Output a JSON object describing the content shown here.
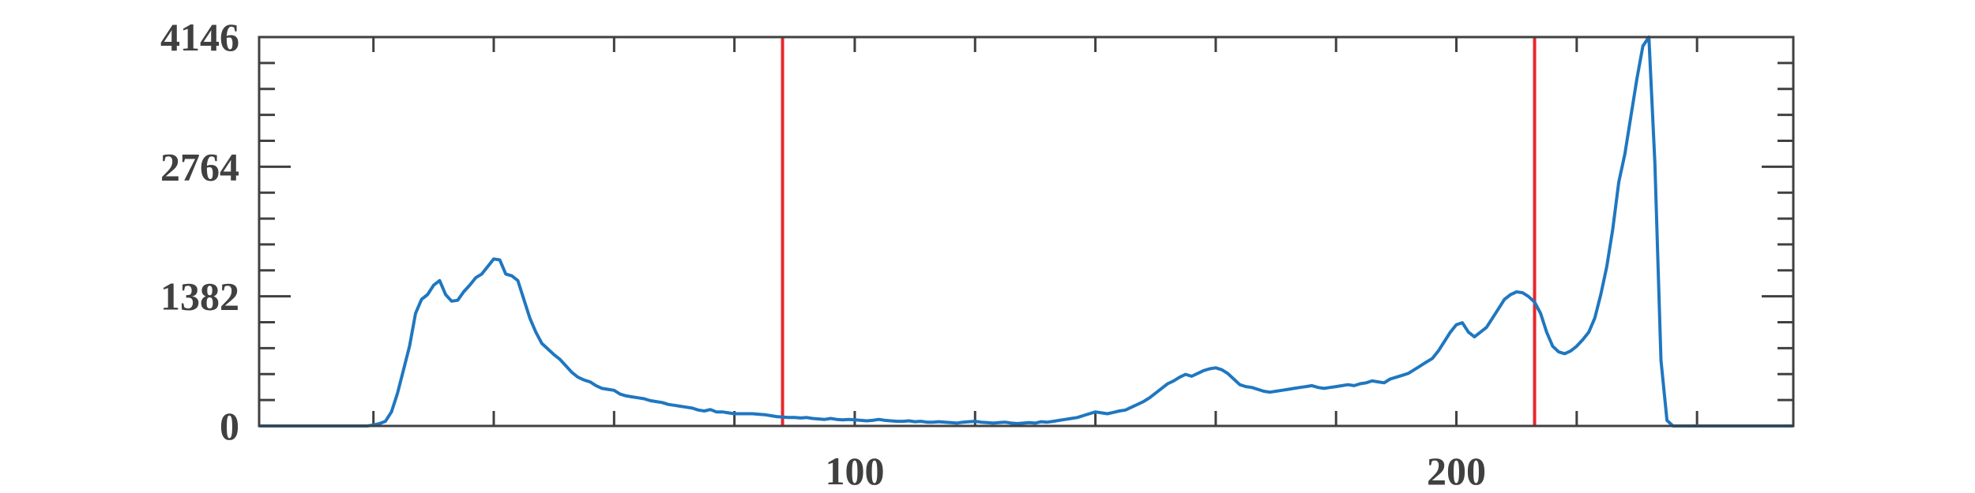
{
  "chart_data": {
    "type": "line",
    "title": "",
    "xlabel": "",
    "ylabel": "",
    "xlim": [
      1,
      256
    ],
    "ylim": [
      0,
      4146
    ],
    "grid": false,
    "legend": "none",
    "x_tick_values": [
      20,
      40,
      60,
      80,
      100,
      120,
      140,
      160,
      180,
      200,
      220,
      240
    ],
    "x_tick_labels": [
      {
        "value": 100,
        "label": "100"
      },
      {
        "value": 200,
        "label": "200"
      }
    ],
    "y_major_ticks": [
      {
        "value": 0,
        "label": "0"
      },
      {
        "value": 1382,
        "label": "1382"
      },
      {
        "value": 2764,
        "label": "2764"
      },
      {
        "value": 4146,
        "label": "4146"
      }
    ],
    "y_minor_tick_values": [
      276.4,
      552.8,
      829.2,
      1105.6,
      1658.4,
      1934.8,
      2211.2,
      2487.6,
      3040.4,
      3316.8,
      3593.2,
      3869.6
    ],
    "vertical_lines": [
      {
        "x": 88,
        "color": "#e8282b"
      },
      {
        "x": 213,
        "color": "#e8282b"
      }
    ],
    "series": [
      {
        "color": "#1f77c0",
        "points": [
          [
            1,
            0
          ],
          [
            19,
            0
          ],
          [
            20,
            10
          ],
          [
            21,
            25
          ],
          [
            22,
            50
          ],
          [
            23,
            150
          ],
          [
            24,
            350
          ],
          [
            25,
            600
          ],
          [
            26,
            850
          ],
          [
            27,
            1200
          ],
          [
            28,
            1350
          ],
          [
            29,
            1400
          ],
          [
            30,
            1500
          ],
          [
            31,
            1550
          ],
          [
            32,
            1400
          ],
          [
            33,
            1330
          ],
          [
            34,
            1340
          ],
          [
            35,
            1430
          ],
          [
            36,
            1500
          ],
          [
            37,
            1580
          ],
          [
            38,
            1620
          ],
          [
            39,
            1700
          ],
          [
            40,
            1780
          ],
          [
            41,
            1770
          ],
          [
            42,
            1620
          ],
          [
            43,
            1600
          ],
          [
            44,
            1550
          ],
          [
            45,
            1350
          ],
          [
            46,
            1150
          ],
          [
            47,
            1000
          ],
          [
            48,
            880
          ],
          [
            49,
            820
          ],
          [
            50,
            760
          ],
          [
            51,
            710
          ],
          [
            52,
            640
          ],
          [
            53,
            570
          ],
          [
            54,
            520
          ],
          [
            55,
            490
          ],
          [
            56,
            470
          ],
          [
            57,
            430
          ],
          [
            58,
            400
          ],
          [
            59,
            390
          ],
          [
            60,
            380
          ],
          [
            61,
            340
          ],
          [
            62,
            320
          ],
          [
            63,
            310
          ],
          [
            64,
            300
          ],
          [
            65,
            290
          ],
          [
            66,
            270
          ],
          [
            67,
            260
          ],
          [
            68,
            250
          ],
          [
            69,
            230
          ],
          [
            70,
            220
          ],
          [
            71,
            210
          ],
          [
            72,
            200
          ],
          [
            73,
            190
          ],
          [
            74,
            170
          ],
          [
            75,
            160
          ],
          [
            76,
            175
          ],
          [
            77,
            150
          ],
          [
            78,
            150
          ],
          [
            79,
            140
          ],
          [
            80,
            130
          ],
          [
            81,
            130
          ],
          [
            82,
            130
          ],
          [
            83,
            130
          ],
          [
            84,
            125
          ],
          [
            85,
            120
          ],
          [
            86,
            110
          ],
          [
            87,
            100
          ],
          [
            88,
            95
          ],
          [
            89,
            90
          ],
          [
            90,
            90
          ],
          [
            91,
            85
          ],
          [
            92,
            90
          ],
          [
            93,
            80
          ],
          [
            94,
            75
          ],
          [
            95,
            70
          ],
          [
            96,
            80
          ],
          [
            97,
            70
          ],
          [
            98,
            65
          ],
          [
            99,
            70
          ],
          [
            100,
            65
          ],
          [
            101,
            60
          ],
          [
            102,
            55
          ],
          [
            103,
            60
          ],
          [
            104,
            70
          ],
          [
            105,
            60
          ],
          [
            106,
            55
          ],
          [
            107,
            50
          ],
          [
            108,
            50
          ],
          [
            109,
            55
          ],
          [
            110,
            45
          ],
          [
            111,
            50
          ],
          [
            112,
            40
          ],
          [
            113,
            40
          ],
          [
            114,
            45
          ],
          [
            115,
            40
          ],
          [
            116,
            35
          ],
          [
            117,
            30
          ],
          [
            118,
            40
          ],
          [
            119,
            45
          ],
          [
            120,
            50
          ],
          [
            121,
            40
          ],
          [
            122,
            35
          ],
          [
            123,
            30
          ],
          [
            124,
            35
          ],
          [
            125,
            40
          ],
          [
            126,
            30
          ],
          [
            127,
            25
          ],
          [
            128,
            30
          ],
          [
            129,
            35
          ],
          [
            130,
            30
          ],
          [
            131,
            45
          ],
          [
            132,
            40
          ],
          [
            133,
            50
          ],
          [
            134,
            60
          ],
          [
            135,
            70
          ],
          [
            136,
            80
          ],
          [
            137,
            90
          ],
          [
            138,
            110
          ],
          [
            139,
            130
          ],
          [
            140,
            150
          ],
          [
            141,
            140
          ],
          [
            142,
            130
          ],
          [
            143,
            145
          ],
          [
            144,
            160
          ],
          [
            145,
            170
          ],
          [
            146,
            200
          ],
          [
            147,
            230
          ],
          [
            148,
            260
          ],
          [
            149,
            300
          ],
          [
            150,
            350
          ],
          [
            151,
            400
          ],
          [
            152,
            450
          ],
          [
            153,
            480
          ],
          [
            154,
            520
          ],
          [
            155,
            550
          ],
          [
            156,
            530
          ],
          [
            157,
            560
          ],
          [
            158,
            590
          ],
          [
            159,
            610
          ],
          [
            160,
            620
          ],
          [
            161,
            600
          ],
          [
            162,
            560
          ],
          [
            163,
            500
          ],
          [
            164,
            440
          ],
          [
            165,
            420
          ],
          [
            166,
            410
          ],
          [
            167,
            390
          ],
          [
            168,
            370
          ],
          [
            169,
            360
          ],
          [
            170,
            370
          ],
          [
            171,
            380
          ],
          [
            172,
            390
          ],
          [
            173,
            400
          ],
          [
            174,
            410
          ],
          [
            175,
            420
          ],
          [
            176,
            430
          ],
          [
            177,
            410
          ],
          [
            178,
            400
          ],
          [
            179,
            410
          ],
          [
            180,
            420
          ],
          [
            181,
            430
          ],
          [
            182,
            440
          ],
          [
            183,
            430
          ],
          [
            184,
            450
          ],
          [
            185,
            460
          ],
          [
            186,
            480
          ],
          [
            187,
            470
          ],
          [
            188,
            460
          ],
          [
            189,
            500
          ],
          [
            190,
            520
          ],
          [
            191,
            540
          ],
          [
            192,
            560
          ],
          [
            193,
            600
          ],
          [
            194,
            640
          ],
          [
            195,
            680
          ],
          [
            196,
            720
          ],
          [
            197,
            800
          ],
          [
            198,
            900
          ],
          [
            199,
            1000
          ],
          [
            200,
            1080
          ],
          [
            201,
            1100
          ],
          [
            202,
            1000
          ],
          [
            203,
            950
          ],
          [
            204,
            1000
          ],
          [
            205,
            1050
          ],
          [
            206,
            1150
          ],
          [
            207,
            1250
          ],
          [
            208,
            1350
          ],
          [
            209,
            1400
          ],
          [
            210,
            1430
          ],
          [
            211,
            1420
          ],
          [
            212,
            1380
          ],
          [
            213,
            1320
          ],
          [
            214,
            1200
          ],
          [
            215,
            1000
          ],
          [
            216,
            850
          ],
          [
            217,
            790
          ],
          [
            218,
            770
          ],
          [
            219,
            800
          ],
          [
            220,
            850
          ],
          [
            221,
            920
          ],
          [
            222,
            1000
          ],
          [
            223,
            1150
          ],
          [
            224,
            1400
          ],
          [
            225,
            1700
          ],
          [
            226,
            2100
          ],
          [
            227,
            2600
          ],
          [
            228,
            2900
          ],
          [
            229,
            3300
          ],
          [
            230,
            3700
          ],
          [
            231,
            4050
          ],
          [
            232,
            4146
          ],
          [
            233,
            2800
          ],
          [
            234,
            700
          ],
          [
            235,
            60
          ],
          [
            236,
            0
          ],
          [
            256,
            0
          ]
        ]
      }
    ]
  }
}
